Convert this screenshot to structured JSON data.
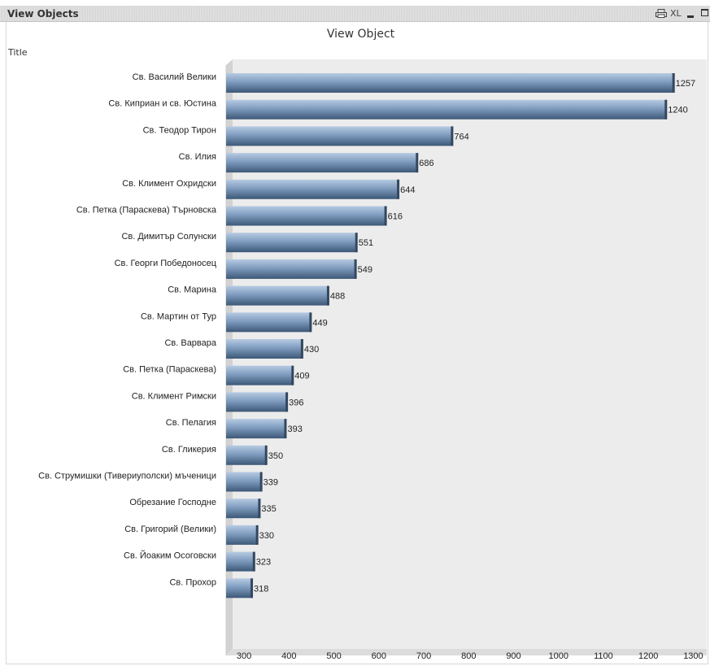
{
  "window": {
    "title": "View Objects",
    "xl_label": "XL",
    "icons": [
      "print-icon",
      "minimize-icon",
      "maximize-icon"
    ]
  },
  "chart_data": {
    "type": "bar",
    "orientation": "horizontal",
    "title": "View Object",
    "dimension_label": "Title",
    "categories": [
      "Св. Василий Велики",
      "Св. Киприан и св. Юстина",
      "Св. Теодор Тирон",
      "Св. Илия",
      "Св. Климент Охридски",
      "Св. Петка (Параскева) Търновска",
      "Св. Димитър Солунски",
      "Св. Георги Победоносец",
      "Св. Марина",
      "Св. Мартин от Тур",
      "Св. Варвара",
      "Св. Петка (Параскева)",
      "Св. Климент Римски",
      "Св. Пелагия",
      "Св. Гликерия",
      "Св. Струмишки (Тивериуполски) мъченици",
      "Обрезание Господне",
      "Св. Григорий (Велики)",
      "Св. Йоаким Осоговски",
      "Св. Прохор"
    ],
    "values": [
      1257,
      1240,
      764,
      686,
      644,
      616,
      551,
      549,
      488,
      449,
      430,
      409,
      396,
      393,
      350,
      339,
      335,
      330,
      323,
      318
    ],
    "xlim": [
      260,
      1330
    ],
    "x_ticks": [
      300,
      400,
      500,
      600,
      700,
      800,
      900,
      1000,
      1100,
      1200,
      1300
    ],
    "colors": {
      "bar_top": "#b7cbe2",
      "bar_mid": "#7f9cbf",
      "bar_bottom": "#3d5877",
      "plot_bg": "#ececec"
    }
  }
}
